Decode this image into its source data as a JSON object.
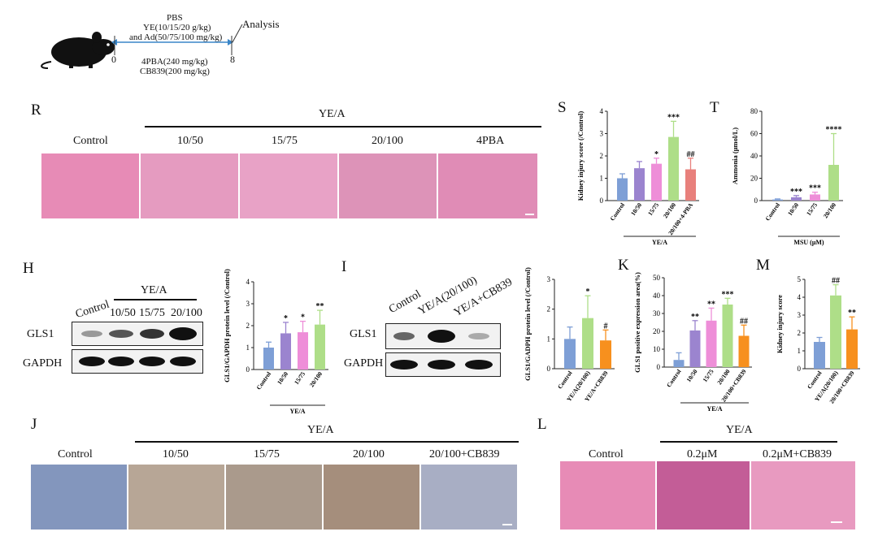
{
  "colors": {
    "blue": "#7e9fd6",
    "purple": "#9b84cf",
    "pink": "#ee8ed8",
    "green": "#aede88",
    "red": "#e8807c",
    "orange": "#f7901e",
    "arrow": "#3a86c8"
  },
  "schematic": {
    "top_label": "PBS",
    "line1": "YE(10/15/20 g/kg)",
    "line2": "and Ad(50/75/100 mg/kg)",
    "analysis": "Analysis",
    "day0": "0",
    "day8": "8",
    "bottom1": "4PBA(240 mg/kg)",
    "bottom2": "CB839(200 mg/kg)"
  },
  "panelR": {
    "letter": "R",
    "group": "YE/A",
    "labels": [
      "Control",
      "10/50",
      "15/75",
      "20/100",
      "4PBA"
    ]
  },
  "panelH": {
    "letter": "H",
    "group": "YE/A",
    "lanes": [
      "Control",
      "10/50",
      "15/75",
      "20/100"
    ],
    "rows": [
      "GLS1",
      "GAPDH"
    ]
  },
  "panelI": {
    "letter": "I",
    "lanes": [
      "Control",
      "YE/A(20/100)",
      "YE/A+CB839"
    ],
    "rows": [
      "GLS1",
      "GAPDH"
    ]
  },
  "panelJ": {
    "letter": "J",
    "group": "YE/A",
    "labels": [
      "Control",
      "10/50",
      "15/75",
      "20/100",
      "20/100+CB839"
    ]
  },
  "panelL": {
    "letter": "L",
    "group": "YE/A",
    "labels": [
      "Control",
      "0.2μM",
      "0.2μM+CB839"
    ]
  },
  "chart_data": [
    {
      "id": "S",
      "letter": "S",
      "type": "bar",
      "ylabel": "Kidney injury score (/Control)",
      "ylim": [
        0,
        4
      ],
      "yticks": [
        "0",
        "1",
        "2",
        "3",
        "4"
      ],
      "categories": [
        "Control",
        "10/50",
        "15/75",
        "20/100",
        "20/100+4-PBA"
      ],
      "values": [
        1.0,
        1.45,
        1.65,
        2.85,
        1.4
      ],
      "errors": [
        0.2,
        0.3,
        0.25,
        0.7,
        0.5
      ],
      "colors": [
        "#7e9fd6",
        "#9b84cf",
        "#ee8ed8",
        "#aede88",
        "#e8807c"
      ],
      "annotations": [
        "",
        "",
        "*",
        "***",
        "##"
      ],
      "group_label": "YE/A"
    },
    {
      "id": "T",
      "letter": "T",
      "type": "bar",
      "ylabel": "Ammonia (μmol/L)",
      "ylim": [
        0,
        80
      ],
      "yticks": [
        "0",
        "20",
        "40",
        "60",
        "80"
      ],
      "categories": [
        "Control",
        "10/50",
        "15/75",
        "20/100"
      ],
      "values": [
        1.0,
        3.0,
        5.5,
        32.0
      ],
      "errors": [
        0.5,
        1.5,
        2.0,
        28.0
      ],
      "colors": [
        "#7e9fd6",
        "#9b84cf",
        "#ee8ed8",
        "#aede88"
      ],
      "annotations": [
        "",
        "***",
        "***",
        "****"
      ],
      "group_label": "MSU (μM)"
    },
    {
      "id": "H",
      "type": "bar",
      "ylabel": "GLS1/GAPDH protein level (/Control)",
      "ylim": [
        0,
        4
      ],
      "yticks": [
        "0",
        "1",
        "2",
        "3",
        "4"
      ],
      "categories": [
        "Control",
        "10/50",
        "15/75",
        "20/100"
      ],
      "values": [
        1.0,
        1.65,
        1.7,
        2.05
      ],
      "errors": [
        0.25,
        0.5,
        0.5,
        0.65
      ],
      "colors": [
        "#7e9fd6",
        "#9b84cf",
        "#ee8ed8",
        "#aede88"
      ],
      "annotations": [
        "",
        "*",
        "*",
        "**"
      ],
      "group_label": "YE/A"
    },
    {
      "id": "I",
      "type": "bar",
      "ylabel": "GLS1/GADPH protein level (/Control)",
      "ylim": [
        0,
        3
      ],
      "yticks": [
        "0",
        "1",
        "2",
        "3"
      ],
      "categories": [
        "Control",
        "YE/A(20/100)",
        "YE/A+CB839"
      ],
      "values": [
        1.0,
        1.7,
        0.95
      ],
      "errors": [
        0.4,
        0.75,
        0.35
      ],
      "colors": [
        "#7e9fd6",
        "#aede88",
        "#f7901e"
      ],
      "annotations": [
        "",
        "*",
        "#"
      ],
      "group_label": ""
    },
    {
      "id": "K",
      "letter": "K",
      "type": "bar",
      "ylabel": "GLS1 positive expression area(%)",
      "ylim": [
        0,
        50
      ],
      "yticks": [
        "0",
        "10",
        "20",
        "30",
        "40",
        "50"
      ],
      "categories": [
        "Control",
        "10/50",
        "15/75",
        "20/100",
        "20/100+CB839"
      ],
      "values": [
        4.0,
        20.5,
        26.0,
        35.0,
        17.5
      ],
      "errors": [
        4.0,
        5.5,
        7.0,
        3.5,
        6.0
      ],
      "colors": [
        "#7e9fd6",
        "#9b84cf",
        "#ee8ed8",
        "#aede88",
        "#f7901e"
      ],
      "annotations": [
        "",
        "**",
        "**",
        "***",
        "##"
      ],
      "group_label": "YE/A"
    },
    {
      "id": "M",
      "letter": "M",
      "type": "bar",
      "ylabel": "Kidney injury score",
      "ylim": [
        0,
        5
      ],
      "yticks": [
        "0",
        "1",
        "2",
        "3",
        "4",
        "5"
      ],
      "categories": [
        "Control",
        "YE/A(20/100)",
        "20/100+CB839"
      ],
      "values": [
        1.5,
        4.1,
        2.2
      ],
      "errors": [
        0.25,
        0.6,
        0.7
      ],
      "colors": [
        "#7e9fd6",
        "#aede88",
        "#f7901e"
      ],
      "annotations": [
        "",
        "##",
        "**"
      ],
      "group_label": ""
    }
  ]
}
